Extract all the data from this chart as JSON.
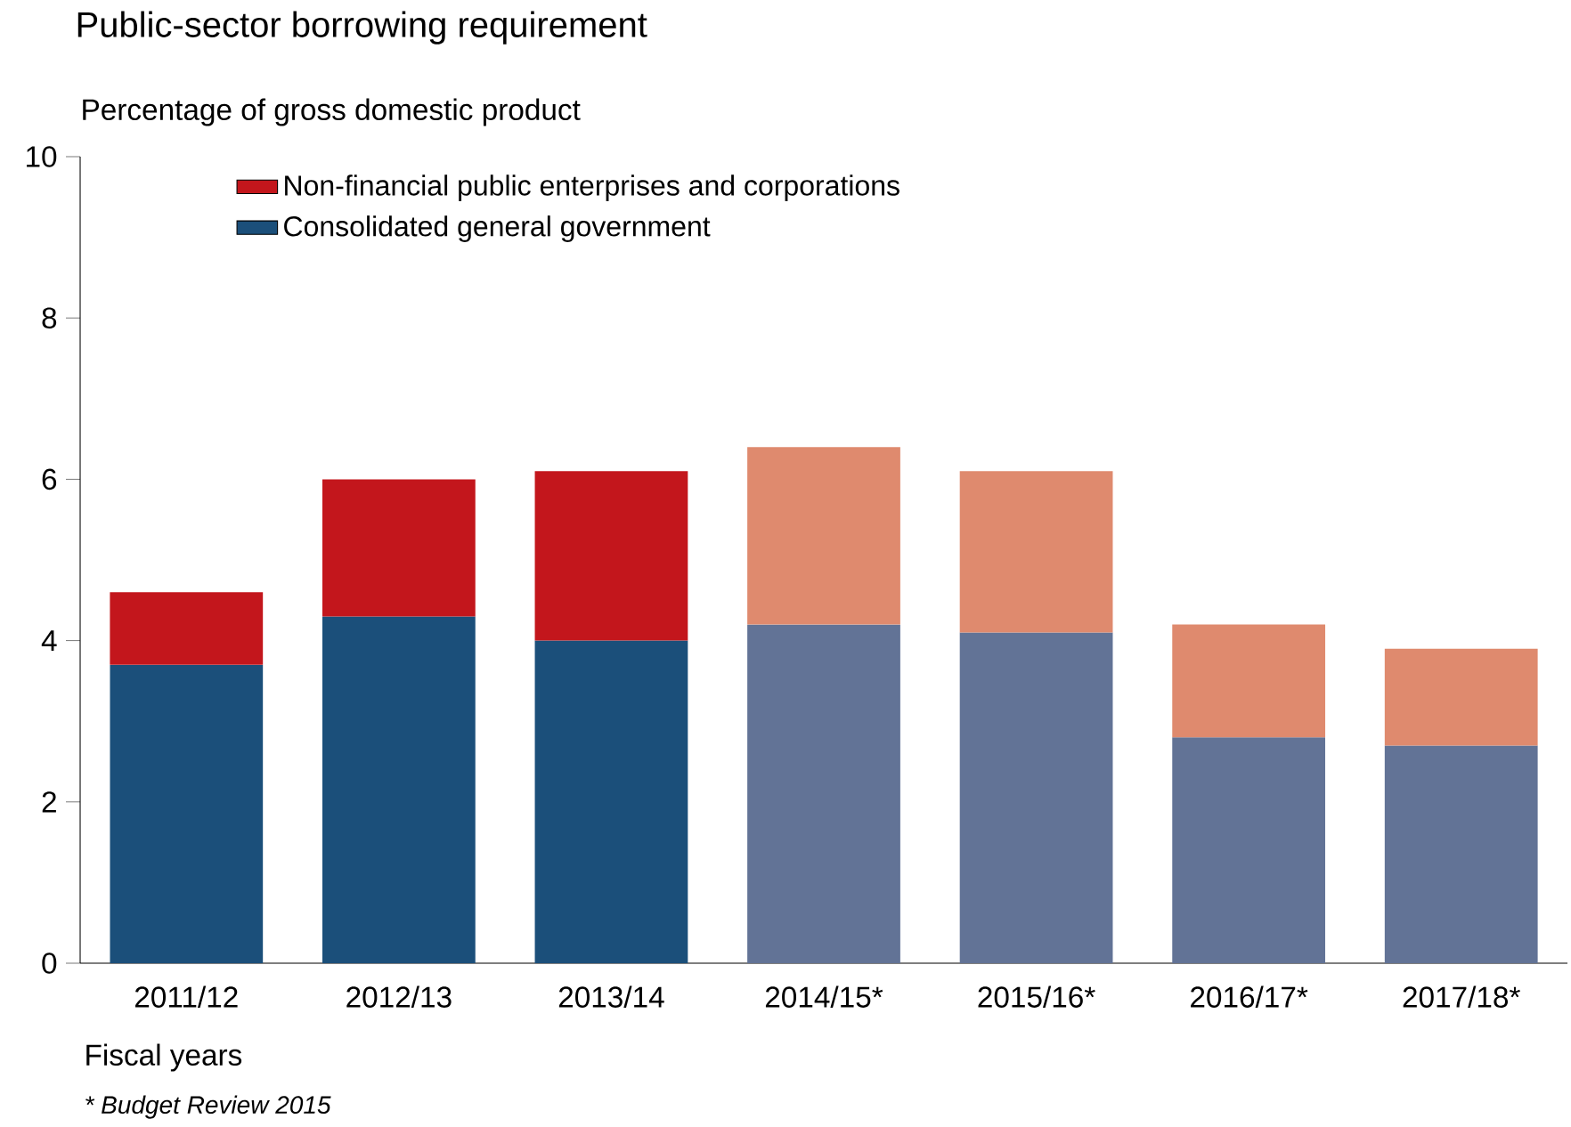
{
  "chart_data": {
    "type": "bar",
    "title": "Public-sector borrowing requirement",
    "ylabel": "Percentage of gross domestic product",
    "xlabel": "Fiscal years",
    "annotations": [
      "* Budget Review 2015"
    ],
    "categories": [
      "2011/12",
      "2012/13",
      "2013/14",
      "2014/15*",
      "2015/16*",
      "2016/17*",
      "2017/18*"
    ],
    "stacked": true,
    "series": [
      {
        "name": "Consolidated general government",
        "colors": [
          "#1b4f7a",
          "#1b4f7a",
          "#1b4f7a",
          "#627396",
          "#627396",
          "#627396",
          "#627396"
        ],
        "values": [
          3.7,
          4.3,
          4.0,
          4.2,
          4.1,
          2.8,
          2.7
        ]
      },
      {
        "name": "Non-financial public enterprises and corporations",
        "colors": [
          "#c3161c",
          "#c3161c",
          "#c3161c",
          "#df8a6e",
          "#df8a6e",
          "#df8a6e",
          "#df8a6e"
        ],
        "values": [
          0.9,
          1.7,
          2.1,
          2.2,
          2.0,
          1.4,
          1.2
        ]
      }
    ],
    "ylim": [
      0,
      10
    ],
    "yticks": [
      0,
      2,
      4,
      6,
      8,
      10
    ],
    "legend": "top left"
  }
}
